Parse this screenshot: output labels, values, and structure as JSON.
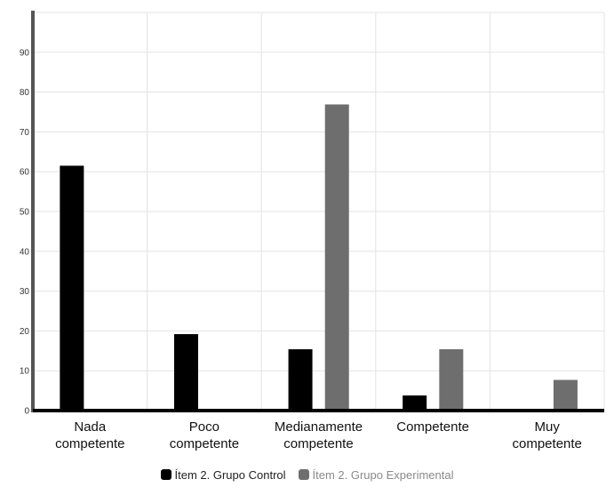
{
  "chart_data": {
    "type": "bar",
    "categories": [
      [
        "Nada",
        "competente"
      ],
      [
        "Poco",
        "competente"
      ],
      [
        "Medianamente",
        "competente"
      ],
      [
        "Competente"
      ],
      [
        "Muy",
        "competente"
      ]
    ],
    "series": [
      {
        "name": "Ítem 2. Grupo Control",
        "color": "#000000",
        "values": [
          61.5,
          19.2,
          15.4,
          3.8,
          0
        ]
      },
      {
        "name": "Ítem 2. Grupo Experimental",
        "color": "#6e6e6e",
        "values": [
          0,
          0,
          76.9,
          15.4,
          7.7
        ]
      }
    ],
    "y_ticks": [
      "0",
      "10",
      "20",
      "30",
      "40",
      "50",
      "60",
      "70",
      "80",
      "90"
    ],
    "ylim": [
      0,
      100
    ],
    "grid": true,
    "legend_position": "bottom",
    "legend_text_colors": [
      "#222222",
      "#8a8a8a"
    ]
  }
}
